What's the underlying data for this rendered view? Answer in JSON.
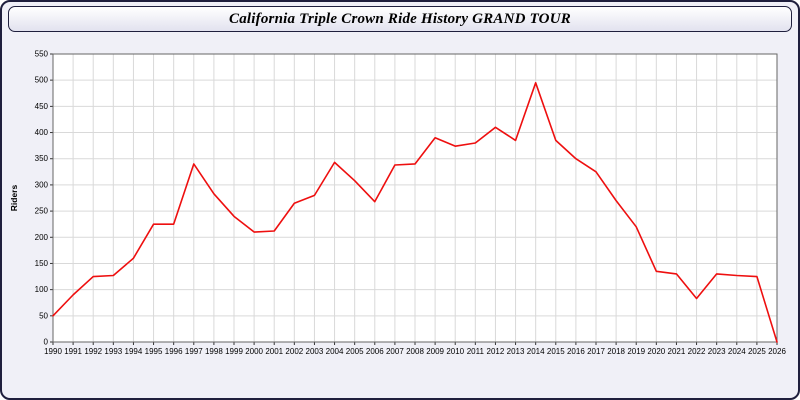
{
  "window": {
    "title": "California Triple Crown Ride History GRAND TOUR"
  },
  "colors": {
    "line": "#ee0f0f",
    "frame_border": "#1f1f3d",
    "page_bg": "#f0f0f7",
    "plot_bg": "#ffffff",
    "grid": "#d9d9d9"
  },
  "chart_data": {
    "type": "line",
    "title": "California Triple Crown Ride History GRAND TOUR",
    "xlabel": "",
    "ylabel": "Riders",
    "ylim": [
      0,
      550
    ],
    "ytick_step": 50,
    "grid": true,
    "legend": "none",
    "x": [
      1990,
      1991,
      1992,
      1993,
      1994,
      1995,
      1996,
      1997,
      1998,
      1999,
      2000,
      2001,
      2002,
      2003,
      2004,
      2005,
      2006,
      2007,
      2008,
      2009,
      2010,
      2011,
      2012,
      2013,
      2014,
      2015,
      2016,
      2017,
      2018,
      2019,
      2020,
      2021,
      2022,
      2023,
      2024,
      2025,
      2026
    ],
    "series": [
      {
        "name": "Riders",
        "color": "#ee0f0f",
        "values": [
          50,
          90,
          125,
          127,
          160,
          225,
          225,
          340,
          283,
          240,
          210,
          212,
          265,
          280,
          343,
          308,
          268,
          338,
          340,
          390,
          374,
          380,
          410,
          385,
          495,
          385,
          350,
          325,
          270,
          220,
          135,
          130,
          83,
          130,
          127,
          125,
          0
        ]
      }
    ]
  }
}
